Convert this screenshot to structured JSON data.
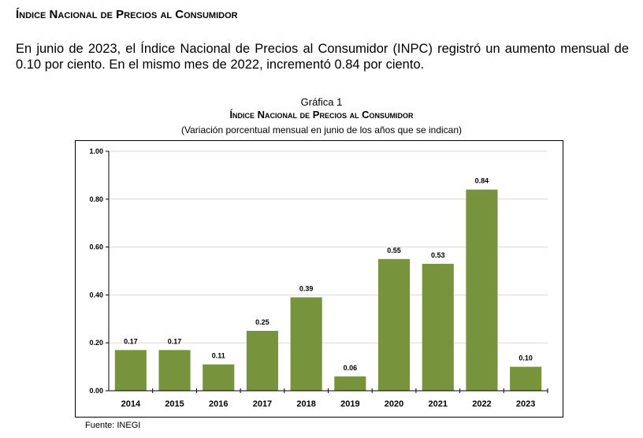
{
  "heading": "Índice Nacional de Precios al Consumidor",
  "paragraph": "En junio de 2023, el Índice Nacional de Precios al Consumidor (INPC) registró un aumento mensual de 0.10 por ciento. En el mismo mes de 2022, incrementó 0.84 por ciento.",
  "source": "Fuente: INEGI",
  "chart_data": {
    "type": "bar",
    "label": "Gráfica 1",
    "title": "Índice Nacional de Precios al Consumidor",
    "subtitle": "(Variación porcentual mensual en junio de los años que se indican)",
    "categories": [
      "2014",
      "2015",
      "2016",
      "2017",
      "2018",
      "2019",
      "2020",
      "2021",
      "2022",
      "2023"
    ],
    "values": [
      0.17,
      0.17,
      0.11,
      0.25,
      0.39,
      0.06,
      0.55,
      0.53,
      0.84,
      0.1
    ],
    "value_labels": [
      "0.17",
      "0.17",
      "0.11",
      "0.25",
      "0.39",
      "0.06",
      "0.55",
      "0.53",
      "0.84",
      "0.10"
    ],
    "yticks": [
      "0.00",
      "0.20",
      "0.40",
      "0.60",
      "0.80",
      "1.00"
    ],
    "ylim": [
      0,
      1
    ],
    "grid": true,
    "bar_color": "#77933c",
    "legend": "none"
  }
}
